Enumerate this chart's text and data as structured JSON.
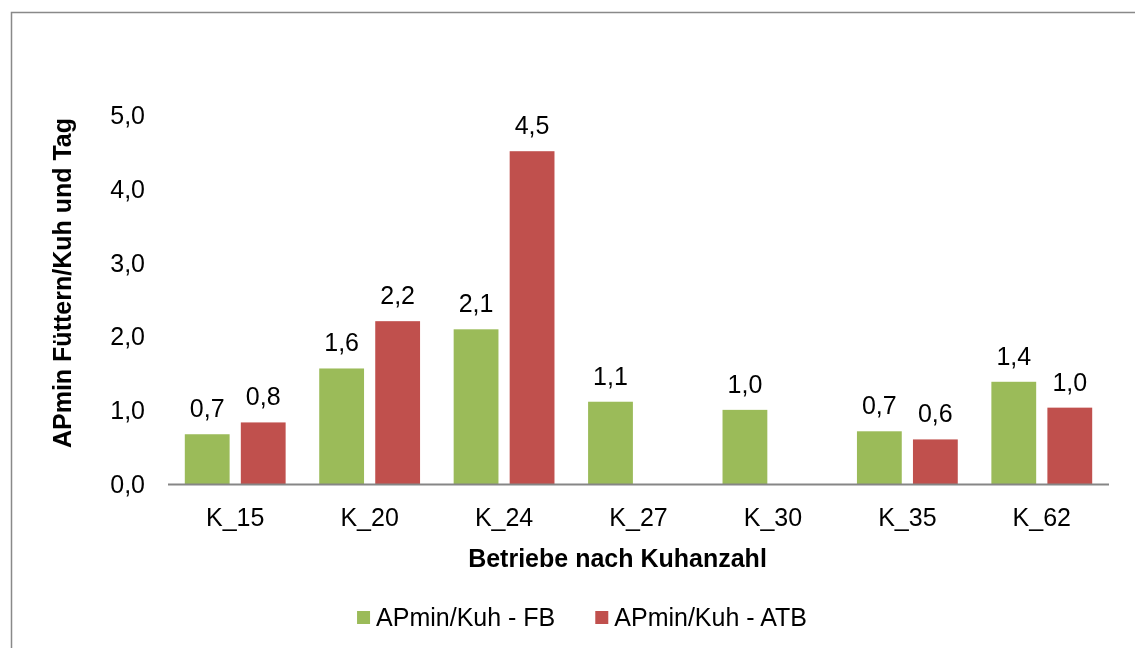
{
  "chart_data": {
    "type": "bar",
    "xlabel": "Betriebe nach Kuhanzahl",
    "ylabel": "APmin Füttern/Kuh und Tag",
    "categories": [
      "K_15",
      "K_20",
      "K_24",
      "K_27",
      "K_30",
      "K_35",
      "K_62"
    ],
    "series": [
      {
        "name": "APmin/Kuh - FB",
        "color": "#9bbb59",
        "values": [
          0.68,
          1.57,
          2.1,
          1.12,
          1.01,
          0.72,
          1.39
        ],
        "value_labels": [
          "0,7",
          "1,6",
          "2,1",
          "1,1",
          "1,0",
          "0,7",
          "1,4"
        ]
      },
      {
        "name": "APmin/Kuh - ATB",
        "color": "#c0504d",
        "values": [
          0.84,
          2.21,
          4.51,
          null,
          null,
          0.61,
          1.04
        ],
        "value_labels": [
          "0,8",
          "2,2",
          "4,5",
          null,
          null,
          "0,6",
          "1,0"
        ]
      }
    ],
    "ylim": [
      0,
      5
    ],
    "yticks": [
      {
        "value": 0,
        "label": "0,0"
      },
      {
        "value": 1,
        "label": "1,0"
      },
      {
        "value": 2,
        "label": "2,0"
      },
      {
        "value": 3,
        "label": "3,0"
      },
      {
        "value": 4,
        "label": "4,0"
      },
      {
        "value": 5,
        "label": "5,0"
      }
    ],
    "legend": "bottom"
  }
}
